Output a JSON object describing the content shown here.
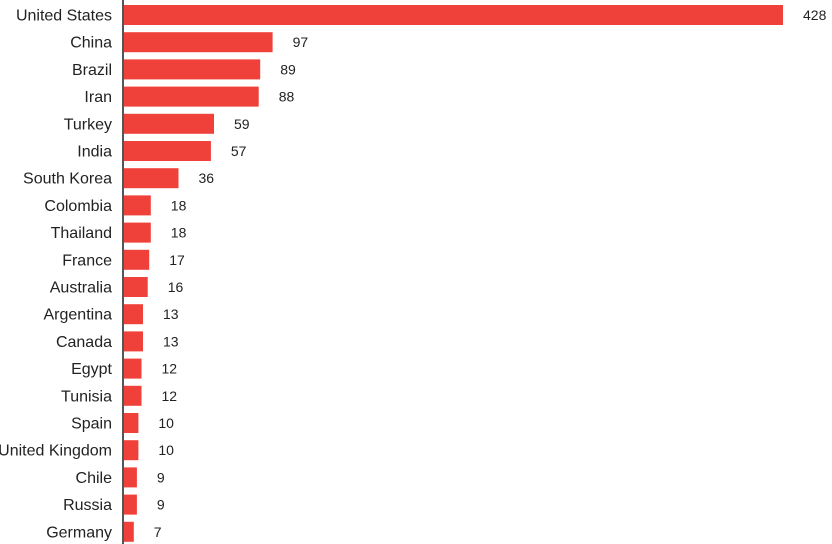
{
  "chart_data": {
    "type": "bar",
    "orientation": "horizontal",
    "title": "",
    "xlabel": "",
    "ylabel": "",
    "categories": [
      "United States",
      "China",
      "Brazil",
      "Iran",
      "Turkey",
      "India",
      "South Korea",
      "Colombia",
      "Thailand",
      "France",
      "Australia",
      "Argentina",
      "Canada",
      "Egypt",
      "Tunisia",
      "Spain",
      "United Kingdom",
      "Chile",
      "Russia",
      "Germany"
    ],
    "values": [
      428,
      97,
      89,
      88,
      59,
      57,
      36,
      18,
      18,
      17,
      16,
      13,
      13,
      12,
      12,
      10,
      10,
      9,
      9,
      7
    ],
    "xlim": [
      0,
      428
    ],
    "grid": false,
    "legend": "none",
    "colors": {
      "bar": "#f0403a",
      "axis": "#555555",
      "text": "#222222"
    }
  }
}
